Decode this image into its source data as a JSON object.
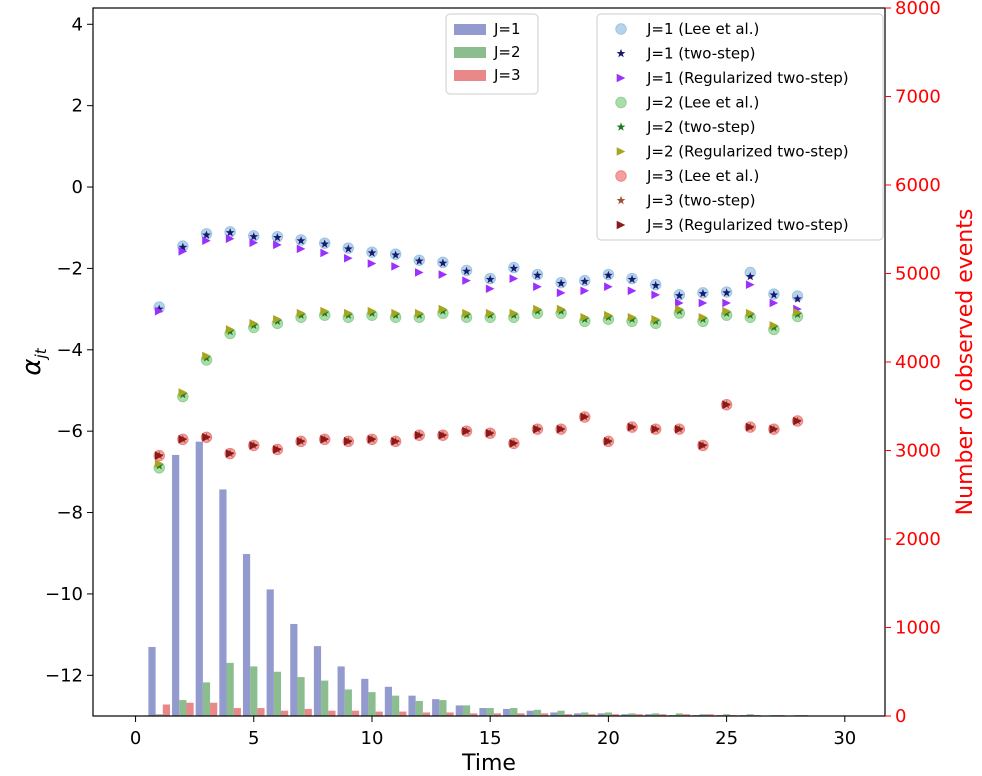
{
  "chart_data": {
    "type": "scatter",
    "xlabel": "Time",
    "ylabel": "α",
    "ylabel_sub": "jt",
    "y2label": "Number of observed events",
    "xlim": [
      -1.8,
      31.7
    ],
    "ylim": [
      -13,
      4.4
    ],
    "y2lim": [
      0,
      8000
    ],
    "xticks": [
      0,
      5,
      10,
      15,
      20,
      25,
      30
    ],
    "yticks": [
      4,
      2,
      0,
      -2,
      -4,
      -6,
      -8,
      -10,
      -12
    ],
    "y2ticks": [
      0,
      1000,
      2000,
      3000,
      4000,
      5000,
      6000,
      7000,
      8000
    ],
    "ytick_labels": [
      "4",
      "2",
      "0",
      "−2",
      "−4",
      "−6",
      "−8",
      "−10",
      "−12"
    ],
    "grid": false,
    "x": [
      1,
      2,
      3,
      4,
      5,
      6,
      7,
      8,
      9,
      10,
      11,
      12,
      13,
      14,
      15,
      16,
      17,
      18,
      19,
      20,
      21,
      22,
      23,
      24,
      25,
      26,
      27,
      28
    ],
    "bar_legend": {
      "position": "top-center",
      "entries": [
        "J=1",
        "J=2",
        "J=3"
      ]
    },
    "scatter_legend": {
      "position": "top-right",
      "entries": [
        "J=1 (Lee et al.)",
        "J=1 (two-step)",
        "J=1 (Regularized two-step)",
        "J=2 (Lee et al.)",
        "J=2 (two-step)",
        "J=2 (Regularized two-step)",
        "J=3 (Lee et al.)",
        "J=3 (two-step)",
        "J=3 (Regularized two-step)"
      ]
    },
    "bar_series": [
      {
        "name": "J=1",
        "color": "#8088c6",
        "values": [
          780,
          2950,
          3100,
          2560,
          1830,
          1430,
          1040,
          790,
          560,
          420,
          330,
          230,
          190,
          120,
          90,
          80,
          60,
          40,
          30,
          30,
          20,
          20,
          10,
          10,
          10,
          10,
          5,
          5
        ]
      },
      {
        "name": "J=2",
        "color": "#77b27a",
        "values": [
          20,
          180,
          380,
          600,
          560,
          500,
          440,
          400,
          300,
          270,
          230,
          170,
          180,
          120,
          90,
          90,
          70,
          60,
          40,
          40,
          30,
          30,
          30,
          20,
          20,
          20,
          10,
          10
        ]
      },
      {
        "name": "J=3",
        "color": "#e57373",
        "values": [
          130,
          150,
          150,
          90,
          90,
          60,
          80,
          60,
          60,
          50,
          50,
          40,
          40,
          30,
          30,
          30,
          30,
          20,
          20,
          20,
          20,
          20,
          20,
          20,
          10,
          10,
          10,
          10
        ]
      }
    ],
    "scatter_series": [
      {
        "name": "J=1 (Lee et al.)",
        "marker": "circle",
        "color": "#9cc4e4",
        "values": [
          -2.95,
          -1.45,
          -1.15,
          -1.1,
          -1.2,
          -1.22,
          -1.3,
          -1.38,
          -1.5,
          -1.6,
          -1.65,
          -1.8,
          -1.85,
          -2.05,
          -2.25,
          -1.98,
          -2.15,
          -2.35,
          -2.3,
          -2.15,
          -2.25,
          -2.4,
          -2.65,
          -2.6,
          -2.58,
          -2.1,
          -2.63,
          -2.68
        ]
      },
      {
        "name": "J=1 (two-step)",
        "marker": "star",
        "color": "#191970",
        "values": [
          -3.0,
          -1.48,
          -1.18,
          -1.12,
          -1.22,
          -1.24,
          -1.32,
          -1.4,
          -1.52,
          -1.62,
          -1.67,
          -1.82,
          -1.87,
          -2.07,
          -2.27,
          -2.0,
          -2.17,
          -2.37,
          -2.32,
          -2.17,
          -2.27,
          -2.42,
          -2.67,
          -2.62,
          -2.6,
          -2.2,
          -2.65,
          -2.75
        ]
      },
      {
        "name": "J=1 (Regularized two-step)",
        "marker": "triangle-right",
        "color": "#9b30ff",
        "values": [
          -3.05,
          -1.58,
          -1.32,
          -1.27,
          -1.37,
          -1.42,
          -1.52,
          -1.62,
          -1.75,
          -1.88,
          -1.95,
          -2.1,
          -2.15,
          -2.3,
          -2.5,
          -2.25,
          -2.45,
          -2.6,
          -2.55,
          -2.45,
          -2.55,
          -2.65,
          -2.85,
          -2.85,
          -2.85,
          -2.4,
          -2.85,
          -3.0
        ]
      },
      {
        "name": "J=2 (Lee et al.)",
        "marker": "circle",
        "color": "#8fd18f",
        "values": [
          -6.9,
          -5.15,
          -4.25,
          -3.6,
          -3.45,
          -3.35,
          -3.2,
          -3.15,
          -3.2,
          -3.15,
          -3.2,
          -3.2,
          -3.1,
          -3.2,
          -3.2,
          -3.2,
          -3.1,
          -3.1,
          -3.3,
          -3.25,
          -3.3,
          -3.35,
          -3.1,
          -3.3,
          -3.15,
          -3.2,
          -3.5,
          -3.18
        ]
      },
      {
        "name": "J=2 (two-step)",
        "marker": "star",
        "color": "#1f7a1f",
        "values": [
          -6.85,
          -5.1,
          -4.2,
          -3.55,
          -3.4,
          -3.3,
          -3.15,
          -3.1,
          -3.15,
          -3.1,
          -3.15,
          -3.15,
          -3.05,
          -3.15,
          -3.15,
          -3.15,
          -3.05,
          -3.05,
          -3.25,
          -3.2,
          -3.25,
          -3.3,
          -3.05,
          -3.25,
          -3.1,
          -3.15,
          -3.45,
          -3.13
        ]
      },
      {
        "name": "J=2 (Regularized two-step)",
        "marker": "triangle-right",
        "color": "#a8a420",
        "values": [
          -6.8,
          -5.05,
          -4.15,
          -3.5,
          -3.35,
          -3.25,
          -3.1,
          -3.05,
          -3.1,
          -3.05,
          -3.1,
          -3.1,
          -3.0,
          -3.1,
          -3.1,
          -3.1,
          -3.0,
          -3.0,
          -3.2,
          -3.15,
          -3.2,
          -3.25,
          -3.0,
          -3.2,
          -3.05,
          -3.1,
          -3.4,
          -3.08
        ]
      },
      {
        "name": "J=3 (Lee et al.)",
        "marker": "circle",
        "color": "#f08080",
        "values": [
          -6.6,
          -6.2,
          -6.15,
          -6.55,
          -6.35,
          -6.45,
          -6.25,
          -6.2,
          -6.25,
          -6.2,
          -6.25,
          -6.1,
          -6.1,
          -6.0,
          -6.05,
          -6.3,
          -5.95,
          -5.95,
          -5.65,
          -6.25,
          -5.9,
          -5.95,
          -5.95,
          -6.35,
          -5.35,
          -5.9,
          -5.95,
          -5.75
        ]
      },
      {
        "name": "J=3 (two-step)",
        "marker": "star",
        "color": "#a0522d",
        "values": [
          -6.6,
          -6.2,
          -6.15,
          -6.55,
          -6.35,
          -6.45,
          -6.25,
          -6.2,
          -6.25,
          -6.2,
          -6.25,
          -6.1,
          -6.1,
          -6.0,
          -6.05,
          -6.3,
          -5.95,
          -5.95,
          -5.65,
          -6.25,
          -5.9,
          -5.95,
          -5.95,
          -6.35,
          -5.35,
          -5.9,
          -5.95,
          -5.75
        ]
      },
      {
        "name": "J=3 (Regularized two-step)",
        "marker": "triangle-right",
        "color": "#8b1a1a",
        "values": [
          -6.6,
          -6.2,
          -6.15,
          -6.55,
          -6.35,
          -6.45,
          -6.25,
          -6.2,
          -6.25,
          -6.2,
          -6.25,
          -6.1,
          -6.1,
          -6.0,
          -6.05,
          -6.3,
          -5.95,
          -5.95,
          -5.65,
          -6.25,
          -5.9,
          -5.95,
          -5.95,
          -6.35,
          -5.35,
          -5.9,
          -5.95,
          -5.75
        ]
      }
    ]
  }
}
